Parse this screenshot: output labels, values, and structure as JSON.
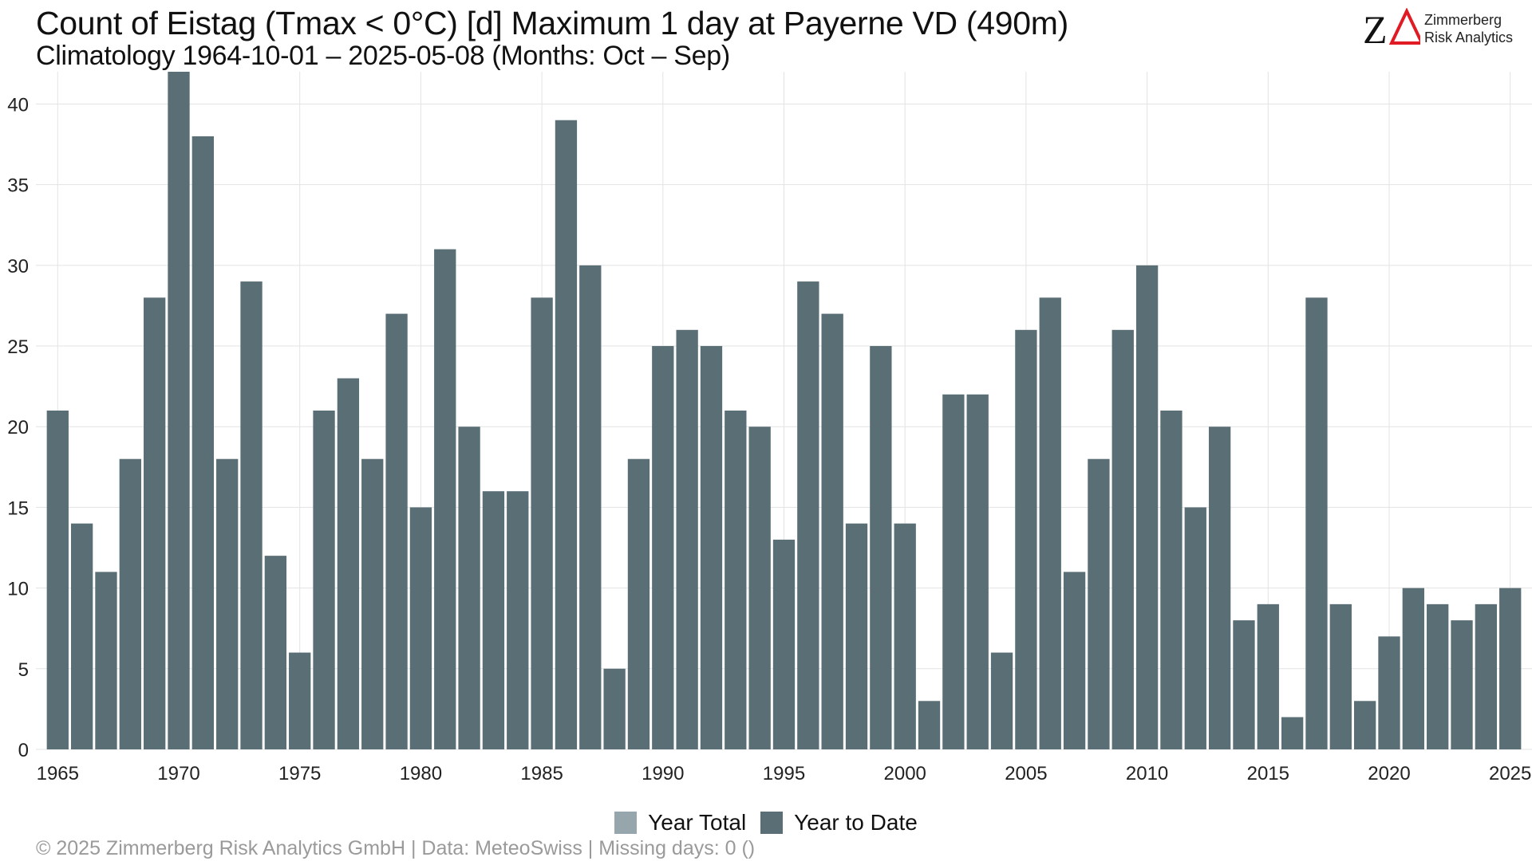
{
  "header": {
    "title": "Count of Eistag (Tmax < 0°C) [d] Maximum 1 day at Payerne  VD (490m)",
    "subtitle": "Climatology 1964-10-01 – 2025-05-08 (Months: Oct – Sep)"
  },
  "logo": {
    "mark": "ZΔ",
    "line1": "Zimmerberg",
    "line2": "Risk Analytics",
    "colors": {
      "z": "#111111",
      "delta": "#e01b24"
    }
  },
  "legend": {
    "items": [
      {
        "label": "Year Total",
        "color": "#97a6ad"
      },
      {
        "label": "Year to Date",
        "color": "#596e75"
      }
    ]
  },
  "caption": "©  2025 Zimmerberg Risk Analytics GmbH | Data: MeteoSwiss | Missing days: 0 ()",
  "colors": {
    "bar": "#596e75",
    "grid": "#e3e3e3"
  },
  "chart_data": {
    "type": "bar",
    "title": "Count of Eistag (Tmax < 0°C) [d] Maximum 1 day at Payerne  VD (490m)",
    "subtitle": "Climatology 1964-10-01 – 2025-05-08 (Months: Oct – Sep)",
    "xlabel": "",
    "ylabel": "",
    "x": [
      1965,
      1966,
      1967,
      1968,
      1969,
      1970,
      1971,
      1972,
      1973,
      1974,
      1975,
      1976,
      1977,
      1978,
      1979,
      1980,
      1981,
      1982,
      1983,
      1984,
      1985,
      1986,
      1987,
      1988,
      1989,
      1990,
      1991,
      1992,
      1993,
      1994,
      1995,
      1996,
      1997,
      1998,
      1999,
      2000,
      2001,
      2002,
      2003,
      2004,
      2005,
      2006,
      2007,
      2008,
      2009,
      2010,
      2011,
      2012,
      2013,
      2014,
      2015,
      2016,
      2017,
      2018,
      2019,
      2020,
      2021,
      2022,
      2023,
      2024,
      2025
    ],
    "series": [
      {
        "name": "Year to Date",
        "values": [
          21,
          14,
          11,
          18,
          28,
          42,
          38,
          18,
          29,
          12,
          6,
          21,
          23,
          18,
          27,
          15,
          31,
          20,
          16,
          16,
          28,
          39,
          30,
          5,
          18,
          25,
          26,
          25,
          21,
          20,
          13,
          29,
          27,
          14,
          25,
          14,
          3,
          22,
          22,
          6,
          26,
          28,
          11,
          18,
          26,
          30,
          21,
          15,
          20,
          8,
          9,
          2,
          28,
          9,
          3,
          7,
          10,
          9,
          8,
          9,
          10
        ]
      }
    ],
    "xticks": [
      1965,
      1970,
      1975,
      1980,
      1985,
      1990,
      1995,
      2000,
      2005,
      2010,
      2015,
      2020,
      2025
    ],
    "yticks": [
      0,
      5,
      10,
      15,
      20,
      25,
      30,
      35,
      40
    ],
    "xlim": [
      1964.1,
      2025.9
    ],
    "ylim": [
      0,
      42
    ],
    "grid": true,
    "legend_position": "bottom"
  }
}
